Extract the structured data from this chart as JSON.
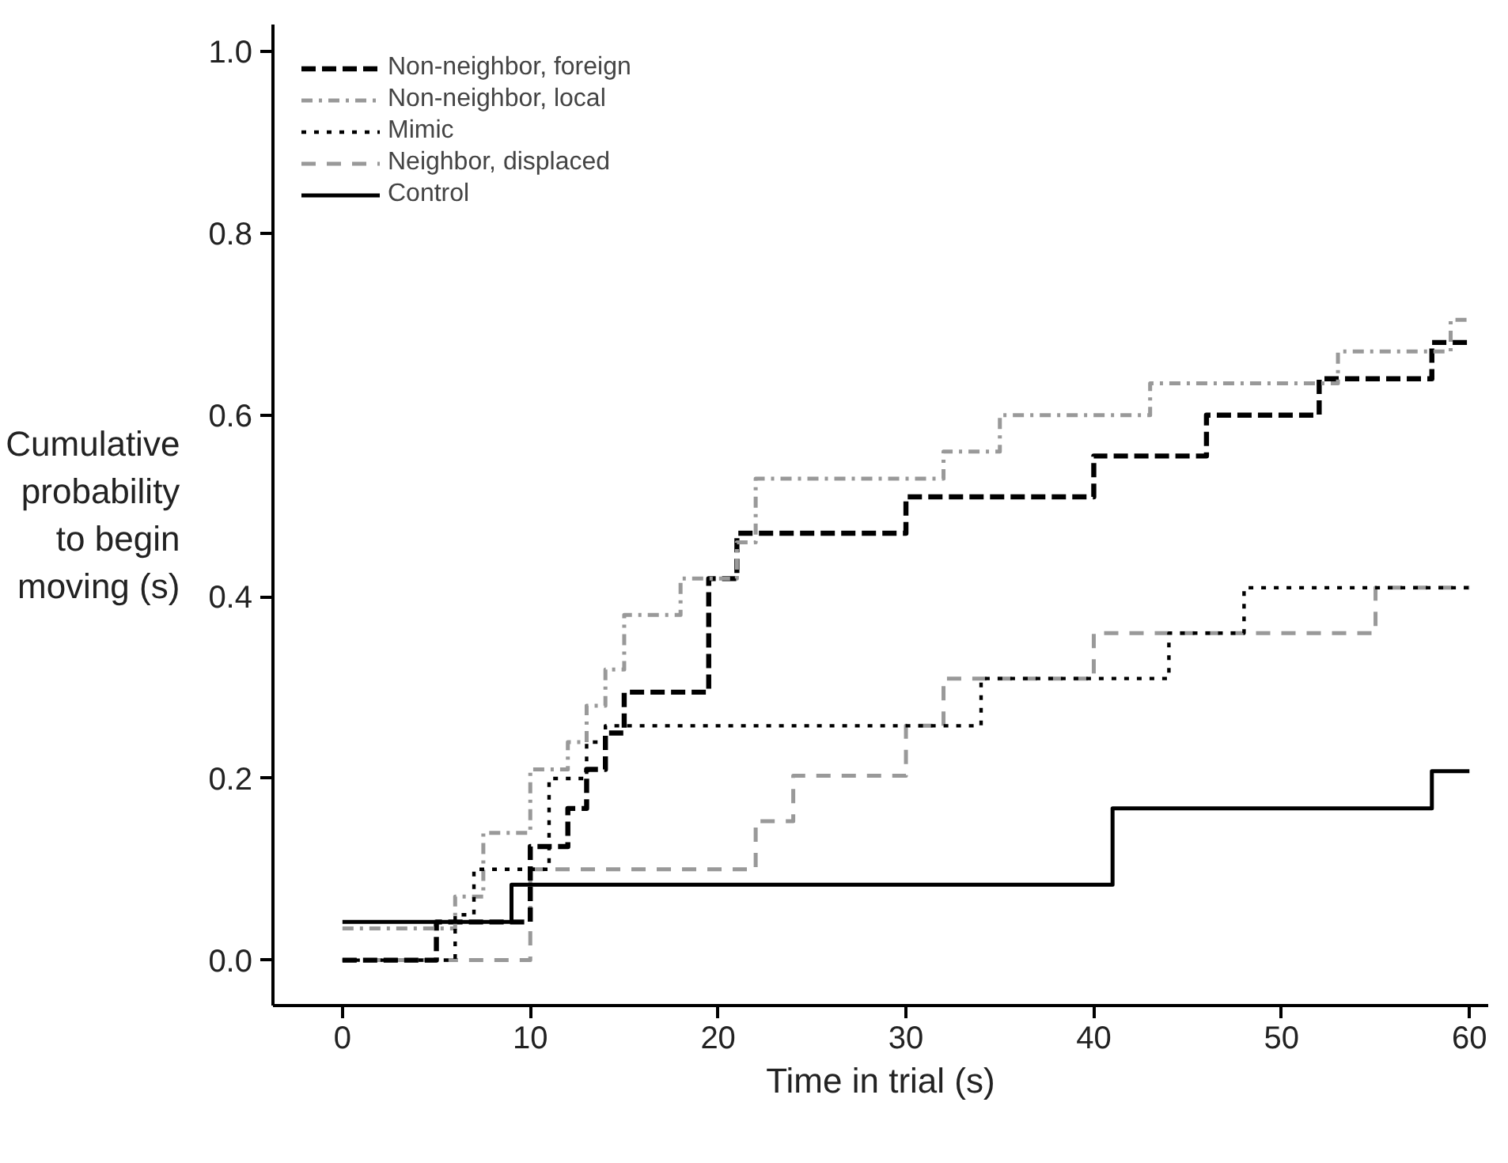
{
  "chart_data": {
    "type": "step",
    "xlabel": "Time in trial (s)",
    "ylabel": "Cumulative probability to begin moving (s)",
    "xlim": [
      -3.7,
      61
    ],
    "ylim": [
      -0.05,
      1.03
    ],
    "xticks": [
      0,
      10,
      20,
      30,
      40,
      50,
      60
    ],
    "yticks": [
      {
        "value": 0,
        "label": "0.0"
      },
      {
        "value": 0.2,
        "label": "0.2"
      },
      {
        "value": 0.4,
        "label": "0.4"
      },
      {
        "value": 0.6,
        "label": "0.6"
      },
      {
        "value": 0.8,
        "label": "0.8"
      },
      {
        "value": 1,
        "label": "1.0"
      }
    ],
    "grid": false,
    "legend": "top left",
    "series": [
      {
        "name": "Non-neighbor, foreign",
        "color": "#000000",
        "line_style": "dashed",
        "x": [
          0,
          5,
          10,
          12,
          13,
          14,
          15,
          19.5,
          21,
          30,
          40,
          46,
          52,
          58,
          60
        ],
        "values": [
          0,
          0.042,
          0.125,
          0.167,
          0.21,
          0.25,
          0.295,
          0.42,
          0.47,
          0.51,
          0.555,
          0.6,
          0.64,
          0.68,
          0.68
        ]
      },
      {
        "name": "Non-neighbor, local",
        "color": "#999999",
        "line_style": "dashdot",
        "x": [
          0,
          6,
          7.5,
          10,
          12,
          13,
          14,
          15,
          18,
          21,
          22,
          32,
          35,
          43,
          53,
          59,
          60
        ],
        "values": [
          0.035,
          0.07,
          0.14,
          0.21,
          0.24,
          0.28,
          0.32,
          0.38,
          0.42,
          0.46,
          0.53,
          0.56,
          0.6,
          0.635,
          0.67,
          0.705,
          0.705
        ]
      },
      {
        "name": "Mimic",
        "color": "#000000",
        "line_style": "dotted",
        "x": [
          0,
          6,
          7,
          11,
          13,
          14,
          34,
          44,
          48,
          60
        ],
        "values": [
          0,
          0.05,
          0.1,
          0.2,
          0.24,
          0.258,
          0.31,
          0.36,
          0.41,
          0.41
        ]
      },
      {
        "name": "Neighbor, displaced",
        "color": "#999999",
        "line_style": "dashed",
        "x": [
          0,
          10,
          22,
          24,
          30,
          32,
          40,
          55,
          60
        ],
        "values": [
          0,
          0.1,
          0.153,
          0.203,
          0.258,
          0.31,
          0.36,
          0.41,
          0.41
        ]
      },
      {
        "name": "Control",
        "color": "#000000",
        "line_style": "solid",
        "x": [
          0,
          9,
          41,
          58,
          60
        ],
        "values": [
          0.042,
          0.083,
          0.167,
          0.208,
          0.208
        ]
      }
    ]
  }
}
